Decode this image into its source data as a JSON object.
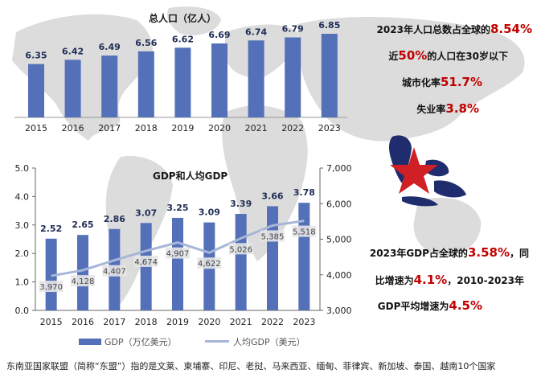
{
  "colors": {
    "bar": "#5470b8",
    "line": "#a7b6d8",
    "highlight": "#c00000",
    "axis": "#555555",
    "map": "#d9d9d9",
    "asean": "#1f2d6e",
    "star": "#d01f25"
  },
  "chart_data": [
    {
      "type": "bar",
      "title": "总人口（亿人）",
      "categories": [
        "2015",
        "2016",
        "2017",
        "2018",
        "2019",
        "2020",
        "2021",
        "2022",
        "2023"
      ],
      "values": [
        6.35,
        6.42,
        6.49,
        6.56,
        6.62,
        6.69,
        6.74,
        6.79,
        6.85
      ],
      "value_labels": [
        "6.35",
        "6.42",
        "6.49",
        "6.56",
        "6.62",
        "6.69",
        "6.74",
        "6.79",
        "6.85"
      ],
      "grid": false
    },
    {
      "type": "bar",
      "title": "GDP和人均GDP",
      "categories": [
        "2015",
        "2016",
        "2017",
        "2018",
        "2019",
        "2020",
        "2021",
        "2022",
        "2023"
      ],
      "series": [
        {
          "name": "GDP（万亿美元）",
          "type": "bar",
          "axis": "left",
          "values": [
            2.52,
            2.65,
            2.86,
            3.07,
            3.25,
            3.09,
            3.39,
            3.66,
            3.78
          ],
          "value_labels": [
            "2.52",
            "2.65",
            "2.86",
            "3.07",
            "3.25",
            "3.09",
            "3.39",
            "3.66",
            "3.78"
          ]
        },
        {
          "name": "人均GDP（美元）",
          "type": "line",
          "axis": "right",
          "values": [
            3970,
            4128,
            4407,
            4674,
            4907,
            4622,
            5026,
            5385,
            5518
          ],
          "value_labels": [
            "3,970",
            "4,128",
            "4,407",
            "4,674",
            "4,907",
            "4,622",
            "5,026",
            "5,385",
            "5,518"
          ]
        }
      ],
      "ylim": [
        0,
        5
      ],
      "yticks": [
        "0.0",
        "1.0",
        "2.0",
        "3.0",
        "4.0",
        "5.0"
      ],
      "ylim_right": [
        3000,
        7000
      ],
      "yticks_right": [
        "3,000",
        "4,000",
        "5,000",
        "6,000",
        "7,000"
      ],
      "legend_position": "bottom",
      "grid": false
    }
  ],
  "stats": {
    "pop_share": {
      "pre": "2023年人口总数占全球的",
      "hl": "8.54%",
      "post": ""
    },
    "under30": {
      "pre": "近",
      "hl": "50%",
      "post": "的人口在30岁以下"
    },
    "urban": {
      "pre": "城市化率",
      "hl": "51.7%",
      "post": ""
    },
    "unemp": {
      "pre": "失业率",
      "hl": "3.8%",
      "post": ""
    }
  },
  "gdp_stats": {
    "l1_pre": "2023年GDP占全球的",
    "l1_hl": "3.58%",
    "l1_post": "，同",
    "l2_pre": "比增速为",
    "l2_hl": "4.1%",
    "l2_post": "，2010-2023年",
    "l3_pre": "GDP平均增速为",
    "l3_hl": "4.5%"
  },
  "footnote": "东南亚国家联盟（简称“东盟”）指的是文莱、柬埔寨、印尼、老挝、马来西亚、缅甸、菲律宾、新加坡、泰国、越南10个国家"
}
